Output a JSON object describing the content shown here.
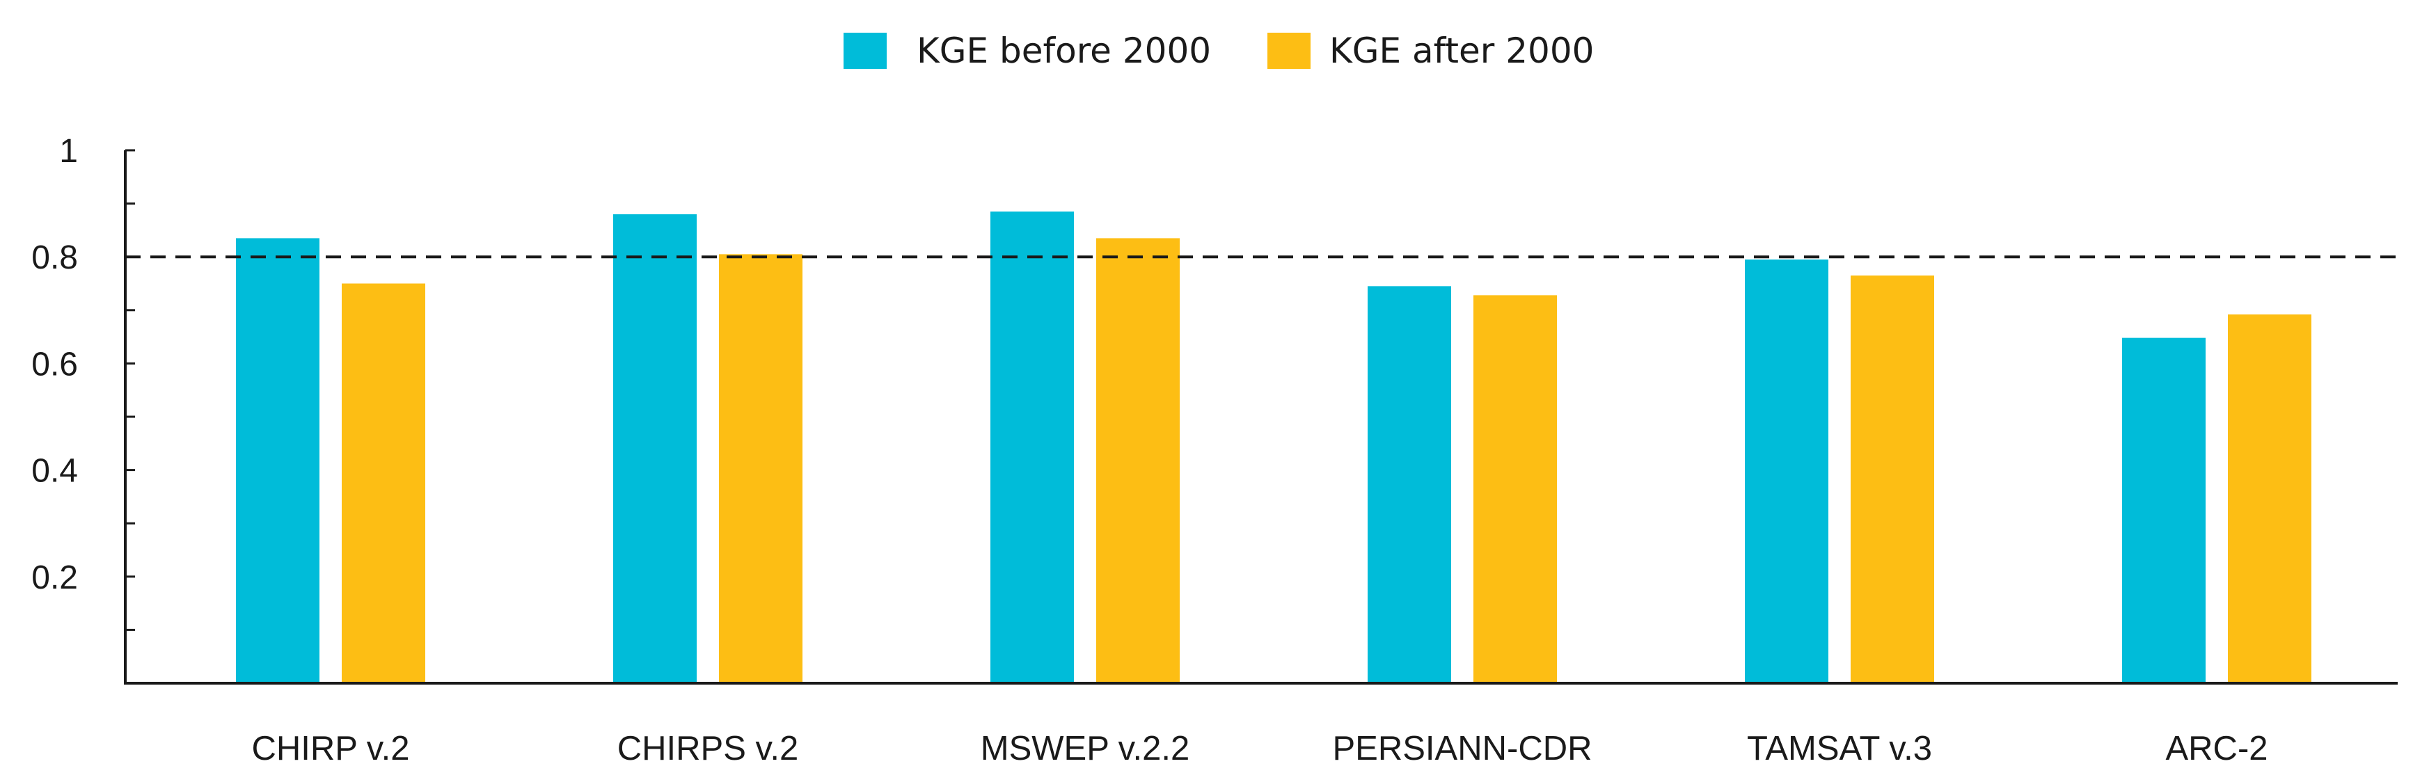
{
  "chart_data": {
    "type": "bar",
    "title": "",
    "xlabel": "",
    "ylabel": "",
    "categories": [
      "CHIRP v.2",
      "CHIRPS v.2",
      "MSWEP v.2.2",
      "PERSIANN-CDR",
      "TAMSAT v.3",
      "ARC-2"
    ],
    "series": [
      {
        "name": "KGE before 2000",
        "color": "#00BCD9",
        "values": [
          0.835,
          0.88,
          0.885,
          0.745,
          0.795,
          0.648
        ]
      },
      {
        "name": "KGE after 2000",
        "color": "#FDBE14",
        "values": [
          0.75,
          0.805,
          0.835,
          0.728,
          0.765,
          0.692
        ]
      }
    ],
    "ylim": [
      0,
      1
    ],
    "yticks": [
      0.2,
      0.4,
      0.6,
      0.8,
      1
    ],
    "ytick_labels": [
      "0.2",
      "0.4",
      "0.6",
      "0.8",
      "1"
    ],
    "reference_line": {
      "value": 0.8,
      "style": "dashed"
    },
    "legend_position": "top-center",
    "grid": false
  }
}
